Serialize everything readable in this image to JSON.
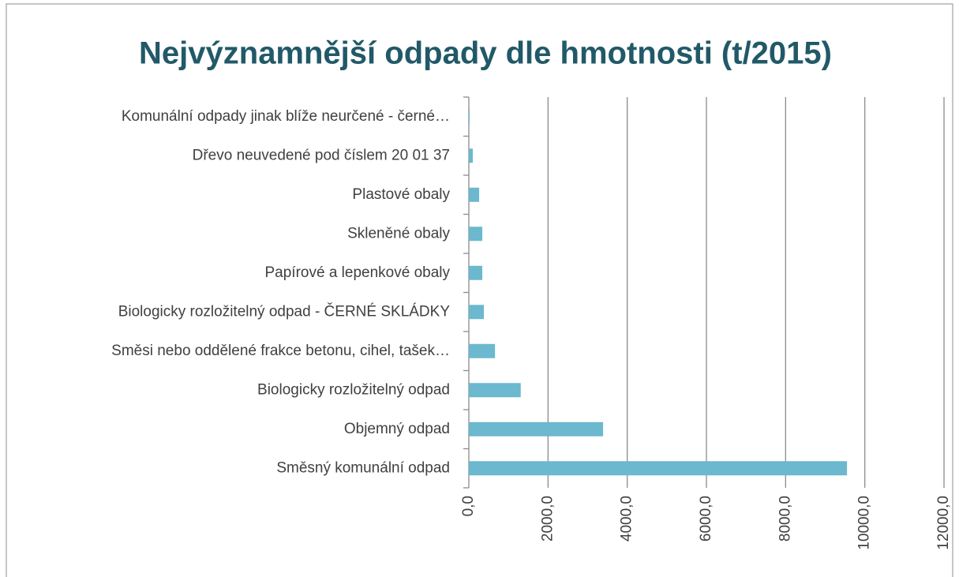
{
  "chart_data": {
    "type": "bar",
    "orientation": "horizontal",
    "title": "Nejvýznamnější odpady dle hmotnosti (t/2015)",
    "categories": [
      "Komunální odpady jinak blíže neurčené -  černé…",
      "Dřevo neuvedené pod číslem 20 01 37",
      "Plastové obaly",
      "Skleněné obaly",
      "Papírové a lepenkové obaly",
      "Biologicky rozložitelný odpad - ČERNÉ  SKLÁDKY",
      "Směsi nebo oddělené frakce betonu, cihel, tašek…",
      "Biologicky rozložitelný odpad",
      "Objemný odpad",
      "Směsný komunální odpad"
    ],
    "values": [
      20,
      100,
      260,
      340,
      340,
      380,
      660,
      1310,
      3390,
      9550
    ],
    "color": "#6bb8cf",
    "xlim": [
      0,
      12000
    ],
    "xticks": [
      {
        "value": 0,
        "label": "0,0"
      },
      {
        "value": 2000,
        "label": "2000,0"
      },
      {
        "value": 4000,
        "label": "4000,0"
      },
      {
        "value": 6000,
        "label": "6000,0"
      },
      {
        "value": 8000,
        "label": "8000,0"
      },
      {
        "value": 10000,
        "label": "10000,0"
      },
      {
        "value": 12000,
        "label": "12000,0"
      }
    ],
    "grid": true
  }
}
